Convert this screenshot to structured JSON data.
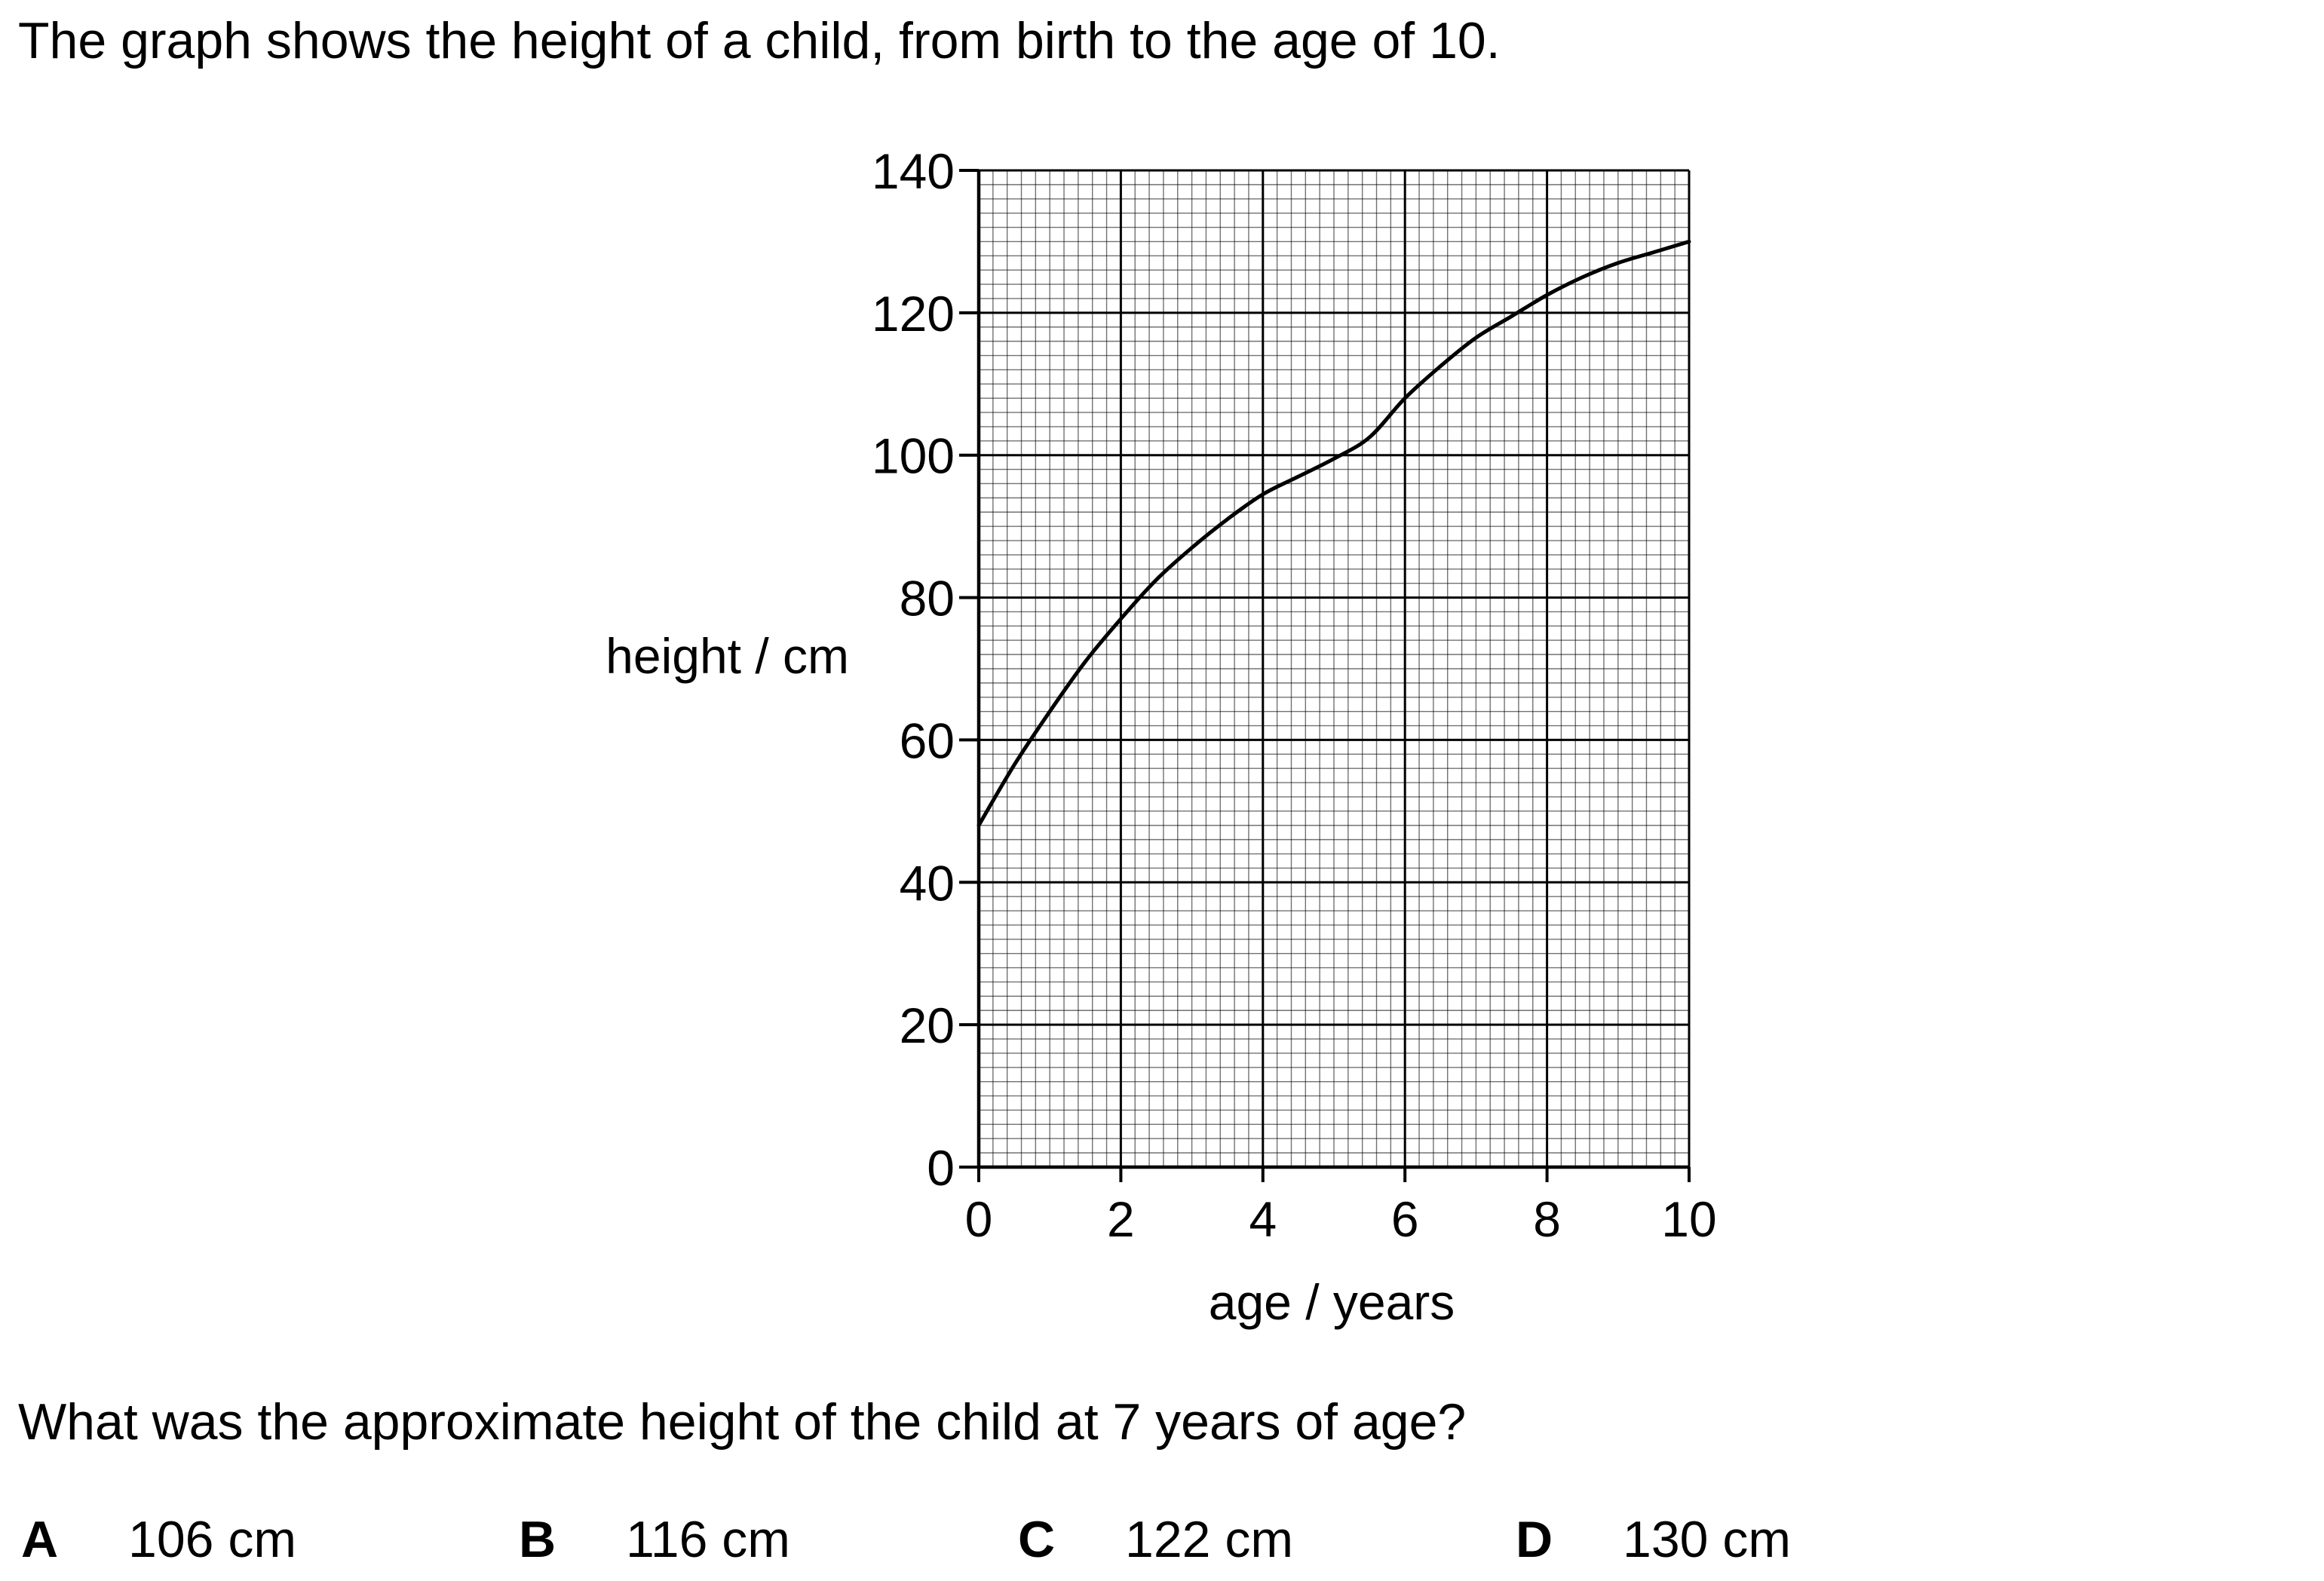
{
  "intro_text": "The graph shows the height of a child, from birth to the age of 10.",
  "question_text": "What was the approximate height of the child at 7 years of age?",
  "options": [
    {
      "letter": "A",
      "value": "106 cm"
    },
    {
      "letter": "B",
      "value": "116 cm"
    },
    {
      "letter": "C",
      "value": "122 cm"
    },
    {
      "letter": "D",
      "value": "130 cm"
    }
  ],
  "chart_data": {
    "type": "line",
    "title": "",
    "xlabel": "age / years",
    "ylabel": "height / cm",
    "xlim": [
      0,
      10
    ],
    "ylim": [
      0,
      140
    ],
    "x_ticks": [
      0,
      2,
      4,
      6,
      8,
      10
    ],
    "y_ticks": [
      0,
      20,
      40,
      60,
      80,
      100,
      120,
      140
    ],
    "x_minor_step": 0.2,
    "y_minor_step": 2,
    "x_major_grid_step": 2,
    "y_major_grid_step": 20,
    "grid": true,
    "series": [
      {
        "x": [
          0,
          0.5,
          1,
          1.5,
          2,
          2.5,
          3,
          3.5,
          4,
          4.5,
          5,
          5.5,
          6,
          6.5,
          7,
          7.5,
          8,
          8.5,
          9,
          9.5,
          10
        ],
        "y": [
          48,
          56.5,
          64,
          71,
          77,
          82.5,
          87,
          91,
          94.5,
          97,
          99.5,
          102.5,
          108,
          112.5,
          116.5,
          119.5,
          122.5,
          125,
          127,
          128.5,
          130
        ],
        "color": "#000000"
      }
    ]
  }
}
